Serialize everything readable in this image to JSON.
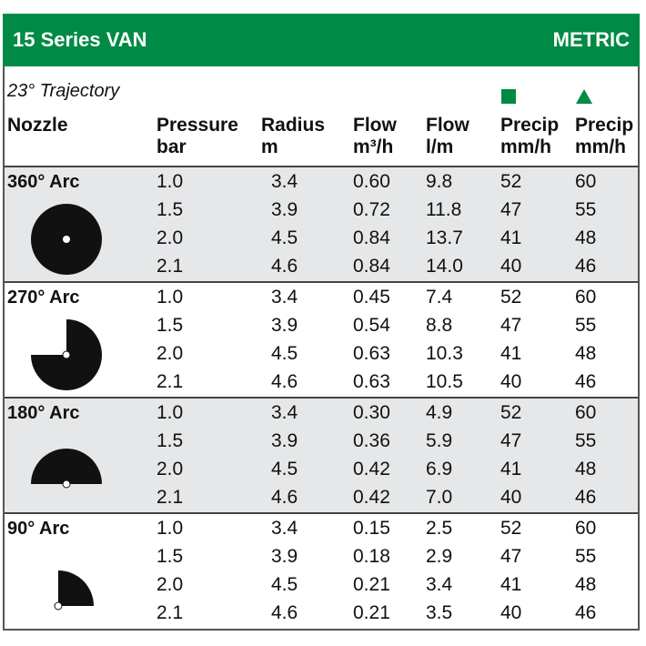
{
  "header": {
    "title": "15 Series VAN",
    "unit": "METRIC"
  },
  "trajectory": "23° Trajectory",
  "columns": [
    {
      "lines": [
        "Nozzle"
      ]
    },
    {
      "lines": [
        "Pressure",
        "bar"
      ]
    },
    {
      "lines": [
        "Radius",
        "m"
      ]
    },
    {
      "lines": [
        "Flow",
        "m³/h"
      ]
    },
    {
      "lines": [
        "Flow",
        "l/m"
      ]
    },
    {
      "lines": [
        "Precip",
        "mm/h"
      ]
    },
    {
      "lines": [
        "Precip",
        "mm/h"
      ]
    }
  ],
  "groups": [
    {
      "arc": "360° Arc",
      "rows": [
        [
          "1.0",
          "3.4",
          "0.60",
          "9.8",
          "52",
          "60"
        ],
        [
          "1.5",
          "3.9",
          "0.72",
          "11.8",
          "47",
          "55"
        ],
        [
          "2.0",
          "4.5",
          "0.84",
          "13.7",
          "41",
          "48"
        ],
        [
          "2.1",
          "4.6",
          "0.84",
          "14.0",
          "40",
          "46"
        ]
      ]
    },
    {
      "arc": "270° Arc",
      "rows": [
        [
          "1.0",
          "3.4",
          "0.45",
          "7.4",
          "52",
          "60"
        ],
        [
          "1.5",
          "3.9",
          "0.54",
          "8.8",
          "47",
          "55"
        ],
        [
          "2.0",
          "4.5",
          "0.63",
          "10.3",
          "41",
          "48"
        ],
        [
          "2.1",
          "4.6",
          "0.63",
          "10.5",
          "40",
          "46"
        ]
      ]
    },
    {
      "arc": "180° Arc",
      "rows": [
        [
          "1.0",
          "3.4",
          "0.30",
          "4.9",
          "52",
          "60"
        ],
        [
          "1.5",
          "3.9",
          "0.36",
          "5.9",
          "47",
          "55"
        ],
        [
          "2.0",
          "4.5",
          "0.42",
          "6.9",
          "41",
          "48"
        ],
        [
          "2.1",
          "4.6",
          "0.42",
          "7.0",
          "40",
          "46"
        ]
      ]
    },
    {
      "arc": "90° Arc",
      "rows": [
        [
          "1.0",
          "3.4",
          "0.15",
          "2.5",
          "52",
          "60"
        ],
        [
          "1.5",
          "3.9",
          "0.18",
          "2.9",
          "47",
          "55"
        ],
        [
          "2.0",
          "4.5",
          "0.21",
          "3.4",
          "41",
          "48"
        ],
        [
          "2.1",
          "4.6",
          "0.21",
          "3.5",
          "40",
          "46"
        ]
      ]
    }
  ]
}
